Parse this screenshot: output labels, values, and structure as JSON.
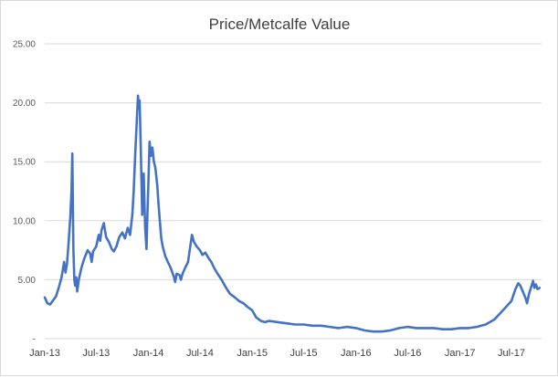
{
  "chart_data": {
    "type": "line",
    "title": "Price/Metcalfe Value",
    "xlabel": "",
    "ylabel": "",
    "ylim": [
      0,
      25
    ],
    "grid": "horizontal",
    "legend": "none",
    "y_ticks": [
      "-",
      "5.00",
      "10.00",
      "15.00",
      "20.00",
      "25.00"
    ],
    "x_ticks": [
      "Jan-13",
      "Jul-13",
      "Jan-14",
      "Jul-14",
      "Jan-15",
      "Jul-15",
      "Jan-16",
      "Jul-16",
      "Jan-17",
      "Jul-17"
    ],
    "x_range": [
      "2013-01",
      "2017-10"
    ],
    "series": [
      {
        "color": "#4472c4",
        "points": [
          [
            "2013-01-01",
            3.5
          ],
          [
            "2013-01-10",
            3.0
          ],
          [
            "2013-01-20",
            2.9
          ],
          [
            "2013-02-01",
            3.3
          ],
          [
            "2013-02-10",
            3.6
          ],
          [
            "2013-02-20",
            4.4
          ],
          [
            "2013-03-01",
            5.2
          ],
          [
            "2013-03-10",
            6.5
          ],
          [
            "2013-03-15",
            5.6
          ],
          [
            "2013-03-20",
            6.3
          ],
          [
            "2013-03-25",
            7.8
          ],
          [
            "2013-04-01",
            10.3
          ],
          [
            "2013-04-05",
            12.5
          ],
          [
            "2013-04-08",
            15.7
          ],
          [
            "2013-04-10",
            11.2
          ],
          [
            "2013-04-12",
            7.5
          ],
          [
            "2013-04-15",
            5.0
          ],
          [
            "2013-04-18",
            4.5
          ],
          [
            "2013-04-22",
            5.2
          ],
          [
            "2013-04-25",
            4.0
          ],
          [
            "2013-05-01",
            5.0
          ],
          [
            "2013-05-10",
            6.0
          ],
          [
            "2013-05-20",
            6.8
          ],
          [
            "2013-06-01",
            7.5
          ],
          [
            "2013-06-10",
            7.2
          ],
          [
            "2013-06-15",
            6.5
          ],
          [
            "2013-06-20",
            7.4
          ],
          [
            "2013-07-01",
            7.8
          ],
          [
            "2013-07-10",
            8.8
          ],
          [
            "2013-07-15",
            8.3
          ],
          [
            "2013-07-20",
            9.2
          ],
          [
            "2013-07-28",
            9.8
          ],
          [
            "2013-08-05",
            8.6
          ],
          [
            "2013-08-15",
            8.2
          ],
          [
            "2013-08-25",
            7.6
          ],
          [
            "2013-09-01",
            7.4
          ],
          [
            "2013-09-10",
            7.8
          ],
          [
            "2013-09-20",
            8.6
          ],
          [
            "2013-10-01",
            9.0
          ],
          [
            "2013-10-10",
            8.5
          ],
          [
            "2013-10-20",
            9.4
          ],
          [
            "2013-10-28",
            8.8
          ],
          [
            "2013-11-05",
            10.5
          ],
          [
            "2013-11-10",
            12.5
          ],
          [
            "2013-11-15",
            15.5
          ],
          [
            "2013-11-20",
            18.0
          ],
          [
            "2013-11-25",
            20.6
          ],
          [
            "2013-11-28",
            19.5
          ],
          [
            "2013-12-01",
            20.2
          ],
          [
            "2013-12-05",
            16.0
          ],
          [
            "2013-12-10",
            10.5
          ],
          [
            "2013-12-15",
            14.0
          ],
          [
            "2013-12-20",
            9.5
          ],
          [
            "2013-12-25",
            7.6
          ],
          [
            "2013-12-28",
            10.2
          ],
          [
            "2014-01-01",
            13.5
          ],
          [
            "2014-01-05",
            16.7
          ],
          [
            "2014-01-10",
            15.5
          ],
          [
            "2014-01-15",
            16.2
          ],
          [
            "2014-01-20",
            15.0
          ],
          [
            "2014-01-25",
            14.5
          ],
          [
            "2014-02-01",
            13.0
          ],
          [
            "2014-02-05",
            11.5
          ],
          [
            "2014-02-10",
            10.0
          ],
          [
            "2014-02-15",
            8.5
          ],
          [
            "2014-02-20",
            7.8
          ],
          [
            "2014-03-01",
            7.0
          ],
          [
            "2014-03-10",
            6.5
          ],
          [
            "2014-03-20",
            6.0
          ],
          [
            "2014-04-01",
            5.2
          ],
          [
            "2014-04-05",
            4.8
          ],
          [
            "2014-04-10",
            5.5
          ],
          [
            "2014-04-20",
            5.4
          ],
          [
            "2014-04-25",
            5.0
          ],
          [
            "2014-05-01",
            5.5
          ],
          [
            "2014-05-10",
            6.0
          ],
          [
            "2014-05-20",
            6.5
          ],
          [
            "2014-05-28",
            7.8
          ],
          [
            "2014-06-03",
            8.8
          ],
          [
            "2014-06-10",
            8.2
          ],
          [
            "2014-06-20",
            7.8
          ],
          [
            "2014-07-01",
            7.5
          ],
          [
            "2014-07-10",
            7.1
          ],
          [
            "2014-07-20",
            7.3
          ],
          [
            "2014-08-01",
            6.8
          ],
          [
            "2014-08-10",
            6.5
          ],
          [
            "2014-08-20",
            6.0
          ],
          [
            "2014-09-01",
            5.5
          ],
          [
            "2014-09-15",
            5.0
          ],
          [
            "2014-10-01",
            4.3
          ],
          [
            "2014-10-15",
            3.8
          ],
          [
            "2014-11-01",
            3.5
          ],
          [
            "2014-11-15",
            3.2
          ],
          [
            "2014-12-01",
            3.0
          ],
          [
            "2014-12-15",
            2.7
          ],
          [
            "2015-01-01",
            2.4
          ],
          [
            "2015-01-15",
            1.8
          ],
          [
            "2015-02-01",
            1.5
          ],
          [
            "2015-02-15",
            1.4
          ],
          [
            "2015-03-01",
            1.5
          ],
          [
            "2015-04-01",
            1.4
          ],
          [
            "2015-05-01",
            1.3
          ],
          [
            "2015-06-01",
            1.2
          ],
          [
            "2015-07-01",
            1.2
          ],
          [
            "2015-08-01",
            1.1
          ],
          [
            "2015-09-01",
            1.1
          ],
          [
            "2015-10-01",
            1.0
          ],
          [
            "2015-11-01",
            0.9
          ],
          [
            "2015-12-01",
            1.0
          ],
          [
            "2016-01-01",
            0.9
          ],
          [
            "2016-02-01",
            0.7
          ],
          [
            "2016-03-01",
            0.6
          ],
          [
            "2016-04-01",
            0.6
          ],
          [
            "2016-05-01",
            0.7
          ],
          [
            "2016-06-01",
            0.9
          ],
          [
            "2016-07-01",
            1.0
          ],
          [
            "2016-08-01",
            0.9
          ],
          [
            "2016-09-01",
            0.9
          ],
          [
            "2016-10-01",
            0.9
          ],
          [
            "2016-11-01",
            0.8
          ],
          [
            "2016-12-01",
            0.8
          ],
          [
            "2017-01-01",
            0.9
          ],
          [
            "2017-02-01",
            0.9
          ],
          [
            "2017-03-01",
            1.0
          ],
          [
            "2017-04-01",
            1.2
          ],
          [
            "2017-05-01",
            1.6
          ],
          [
            "2017-06-01",
            2.4
          ],
          [
            "2017-07-01",
            3.2
          ],
          [
            "2017-07-15",
            4.2
          ],
          [
            "2017-07-25",
            4.7
          ],
          [
            "2017-08-01",
            4.5
          ],
          [
            "2017-08-10",
            4.0
          ],
          [
            "2017-08-20",
            3.4
          ],
          [
            "2017-08-25",
            3.0
          ],
          [
            "2017-09-01",
            3.8
          ],
          [
            "2017-09-10",
            4.5
          ],
          [
            "2017-09-15",
            4.9
          ],
          [
            "2017-09-20",
            4.3
          ],
          [
            "2017-09-25",
            4.6
          ],
          [
            "2017-10-01",
            4.2
          ],
          [
            "2017-10-08",
            4.3
          ]
        ]
      }
    ]
  }
}
